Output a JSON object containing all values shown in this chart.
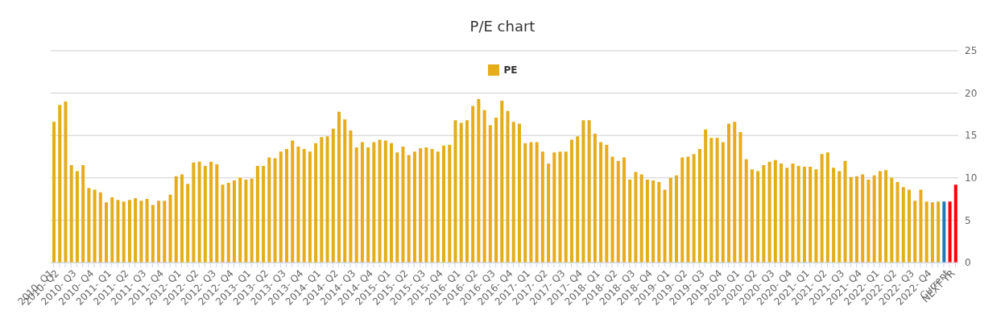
{
  "chart_data": {
    "type": "bar",
    "title": "P/E chart",
    "categories": [
      "2010- Q1",
      "2010- Q2",
      null,
      null,
      "2010- Q3",
      null,
      null,
      "2010- Q4",
      null,
      null,
      "2011- Q1",
      null,
      null,
      "2011- Q2",
      null,
      null,
      "2011- Q3",
      null,
      null,
      "2011- Q4",
      null,
      null,
      "2012- Q1",
      null,
      null,
      "2012- Q2",
      null,
      null,
      "2012- Q3",
      null,
      null,
      "2012- Q4",
      null,
      null,
      "2013- Q1",
      null,
      null,
      "2013- Q2",
      null,
      null,
      "2013- Q3",
      null,
      null,
      "2013- Q4",
      null,
      null,
      "2014- Q1",
      null,
      null,
      "2014- Q2",
      null,
      null,
      "2014- Q3",
      null,
      null,
      "2014- Q4",
      null,
      null,
      "2015- Q1",
      null,
      null,
      "2015- Q2",
      null,
      null,
      "2015- Q3",
      null,
      null,
      "2015- Q4",
      null,
      null,
      "2016- Q1",
      null,
      null,
      "2016- Q2",
      null,
      null,
      "2016- Q3",
      null,
      null,
      "2016- Q4",
      null,
      null,
      "2017- Q1",
      null,
      null,
      "2017- Q2",
      null,
      null,
      "2017- Q3",
      null,
      null,
      "2017- Q4",
      null,
      null,
      "2018- Q1",
      null,
      null,
      "2018- Q2",
      null,
      null,
      "2018- Q3",
      null,
      null,
      "2018- Q4",
      null,
      null,
      "2019- Q1",
      null,
      null,
      "2019- Q2",
      null,
      null,
      "2019- Q3",
      null,
      null,
      "2019- Q4",
      null,
      null,
      "2020- Q1",
      null,
      null,
      "2020- Q2",
      null,
      null,
      "2020- Q3",
      null,
      null,
      "2020- Q4",
      null,
      null,
      "2021- Q1",
      null,
      null,
      "2021- Q2",
      null,
      null,
      "2021- Q3",
      null,
      null,
      "2021- Q4",
      null,
      null,
      "2022- Q1",
      null,
      null,
      "2022- Q2",
      null,
      null,
      "2022- Q3",
      null,
      null,
      "2022- Q4",
      null,
      null,
      "Current",
      "NEXT YR"
    ],
    "series": [
      {
        "name": "PE",
        "color": "#e6ac1a",
        "values": [
          16.6,
          18.6,
          19.0,
          11.5,
          10.8,
          11.5,
          8.8,
          8.6,
          8.3,
          7.1,
          7.7,
          7.4,
          7.2,
          7.4,
          7.6,
          7.3,
          7.5,
          6.8,
          7.3,
          7.3,
          8.0,
          10.2,
          10.4,
          9.3,
          11.8,
          11.9,
          11.4,
          11.9,
          11.6,
          9.2,
          9.4,
          9.7,
          10.0,
          9.8,
          9.9,
          11.4,
          11.4,
          12.4,
          12.3,
          13.1,
          13.4,
          14.4,
          13.7,
          13.4,
          13.1,
          14.1,
          14.8,
          14.9,
          15.8,
          17.8,
          16.9,
          15.6,
          13.6,
          14.2,
          13.6,
          14.2,
          14.5,
          14.4,
          14.1,
          13.0,
          13.7,
          12.7,
          13.1,
          13.5,
          13.6,
          13.4,
          13.1,
          13.8,
          13.9,
          16.8,
          16.5,
          16.8,
          18.5,
          19.3,
          18.0,
          16.2,
          17.1,
          19.1,
          17.9,
          16.6,
          16.4,
          14.1,
          14.2,
          14.2,
          13.1,
          11.7,
          13.0,
          13.1,
          13.1,
          14.5,
          14.9,
          16.8,
          16.8,
          15.2,
          14.2,
          13.9,
          12.5,
          12.0,
          12.4,
          9.8,
          10.7,
          10.4,
          9.8,
          9.7,
          9.5,
          8.6,
          10.0,
          10.3,
          12.4,
          12.5,
          12.8,
          13.4,
          15.7,
          14.7,
          14.7,
          14.2,
          16.4,
          16.6,
          15.4,
          12.2,
          11.0,
          10.8,
          11.5,
          11.9,
          12.1,
          11.7,
          11.2,
          11.7,
          11.4,
          11.3,
          11.3,
          11.0,
          12.8,
          13.0,
          11.2,
          10.8,
          12.0,
          10.1,
          10.2,
          10.4,
          9.8,
          10.3,
          10.8,
          10.9,
          10.0,
          9.5,
          8.9,
          8.6,
          7.3,
          8.6,
          7.2,
          7.1,
          7.2,
          7.2,
          7.2,
          9.2
        ],
        "colors": [
          "#e6ac1a",
          "#e6ac1a",
          "#e6ac1a",
          "#e6ac1a",
          "#e6ac1a",
          "#e6ac1a",
          "#e6ac1a",
          "#e6ac1a",
          "#e6ac1a",
          "#e6ac1a",
          "#e6ac1a",
          "#e6ac1a",
          "#e6ac1a",
          "#e6ac1a",
          "#e6ac1a",
          "#e6ac1a",
          "#e6ac1a",
          "#e6ac1a",
          "#e6ac1a",
          "#e6ac1a",
          "#e6ac1a",
          "#e6ac1a",
          "#e6ac1a",
          "#e6ac1a",
          "#e6ac1a",
          "#e6ac1a",
          "#e6ac1a",
          "#e6ac1a",
          "#e6ac1a",
          "#e6ac1a",
          "#e6ac1a",
          "#e6ac1a",
          "#e6ac1a",
          "#e6ac1a",
          "#e6ac1a",
          "#e6ac1a",
          "#e6ac1a",
          "#e6ac1a",
          "#e6ac1a",
          "#e6ac1a",
          "#e6ac1a",
          "#e6ac1a",
          "#e6ac1a",
          "#e6ac1a",
          "#e6ac1a",
          "#e6ac1a",
          "#e6ac1a",
          "#e6ac1a",
          "#e6ac1a",
          "#e6ac1a",
          "#e6ac1a",
          "#e6ac1a",
          "#e6ac1a",
          "#e6ac1a",
          "#e6ac1a",
          "#e6ac1a",
          "#e6ac1a",
          "#e6ac1a",
          "#e6ac1a",
          "#e6ac1a",
          "#e6ac1a",
          "#e6ac1a",
          "#e6ac1a",
          "#e6ac1a",
          "#e6ac1a",
          "#e6ac1a",
          "#e6ac1a",
          "#e6ac1a",
          "#e6ac1a",
          "#e6ac1a",
          "#e6ac1a",
          "#e6ac1a",
          "#e6ac1a",
          "#e6ac1a",
          "#e6ac1a",
          "#e6ac1a",
          "#e6ac1a",
          "#e6ac1a",
          "#e6ac1a",
          "#e6ac1a",
          "#e6ac1a",
          "#e6ac1a",
          "#e6ac1a",
          "#e6ac1a",
          "#e6ac1a",
          "#e6ac1a",
          "#e6ac1a",
          "#e6ac1a",
          "#e6ac1a",
          "#e6ac1a",
          "#e6ac1a",
          "#e6ac1a",
          "#e6ac1a",
          "#e6ac1a",
          "#e6ac1a",
          "#e6ac1a",
          "#e6ac1a",
          "#e6ac1a",
          "#e6ac1a",
          "#e6ac1a",
          "#e6ac1a",
          "#e6ac1a",
          "#e6ac1a",
          "#e6ac1a",
          "#e6ac1a",
          "#e6ac1a",
          "#e6ac1a",
          "#e6ac1a",
          "#e6ac1a",
          "#e6ac1a",
          "#e6ac1a",
          "#e6ac1a",
          "#e6ac1a",
          "#e6ac1a",
          "#e6ac1a",
          "#e6ac1a",
          "#e6ac1a",
          "#e6ac1a",
          "#e6ac1a",
          "#e6ac1a",
          "#e6ac1a",
          "#e6ac1a",
          "#e6ac1a",
          "#e6ac1a",
          "#e6ac1a",
          "#e6ac1a",
          "#e6ac1a",
          "#e6ac1a",
          "#e6ac1a",
          "#e6ac1a",
          "#e6ac1a",
          "#e6ac1a",
          "#e6ac1a",
          "#e6ac1a",
          "#e6ac1a",
          "#e6ac1a",
          "#e6ac1a",
          "#e6ac1a",
          "#e6ac1a",
          "#e6ac1a",
          "#e6ac1a",
          "#e6ac1a",
          "#e6ac1a",
          "#e6ac1a",
          "#e6ac1a",
          "#e6ac1a",
          "#e6ac1a",
          "#e6ac1a",
          "#e6ac1a",
          "#e6ac1a",
          "#e6ac1a",
          "#e6ac1a",
          "#e6ac1a",
          "#1f78b4",
          "#ff0000",
          "#ff0000"
        ]
      }
    ],
    "ylim": [
      0,
      25
    ],
    "yticks": [
      0,
      5,
      10,
      15,
      20,
      25
    ],
    "grid": "y",
    "legend": "top"
  }
}
